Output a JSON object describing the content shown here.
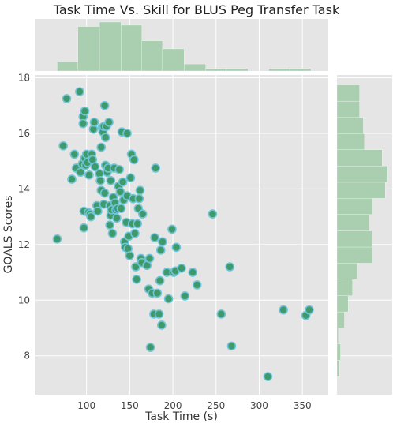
{
  "chart_data": {
    "type": "scatter",
    "title": "Task Time Vs. Skill for BLUS Peg Transfer Task",
    "xlabel": "Task Time (s)",
    "ylabel": "GOALS Scores",
    "xlim": [
      40,
      380
    ],
    "ylim": [
      6.6,
      18.1
    ],
    "x_ticks": [
      100,
      150,
      200,
      250,
      300,
      350
    ],
    "y_ticks": [
      8,
      10,
      12,
      14,
      16,
      18
    ],
    "grid": true,
    "points": [
      {
        "x": 66,
        "y": 12.2
      },
      {
        "x": 73,
        "y": 15.55
      },
      {
        "x": 77,
        "y": 17.25
      },
      {
        "x": 83,
        "y": 14.35
      },
      {
        "x": 86,
        "y": 15.25
      },
      {
        "x": 88,
        "y": 14.75
      },
      {
        "x": 92,
        "y": 17.5
      },
      {
        "x": 93,
        "y": 14.6
      },
      {
        "x": 95,
        "y": 14.9
      },
      {
        "x": 96,
        "y": 16.6
      },
      {
        "x": 96,
        "y": 16.35
      },
      {
        "x": 97,
        "y": 13.2
      },
      {
        "x": 97,
        "y": 12.6
      },
      {
        "x": 98,
        "y": 16.8
      },
      {
        "x": 98,
        "y": 15.1
      },
      {
        "x": 99,
        "y": 14.85
      },
      {
        "x": 100,
        "y": 15.25
      },
      {
        "x": 101,
        "y": 14.95
      },
      {
        "x": 102,
        "y": 13.15
      },
      {
        "x": 103,
        "y": 14.5
      },
      {
        "x": 104,
        "y": 13.1
      },
      {
        "x": 105,
        "y": 13.0
      },
      {
        "x": 106,
        "y": 15.25
      },
      {
        "x": 107,
        "y": 15.05
      },
      {
        "x": 108,
        "y": 16.15
      },
      {
        "x": 109,
        "y": 16.4
      },
      {
        "x": 110,
        "y": 14.8
      },
      {
        "x": 112,
        "y": 13.4
      },
      {
        "x": 113,
        "y": 13.2
      },
      {
        "x": 115,
        "y": 14.55
      },
      {
        "x": 116,
        "y": 14.3
      },
      {
        "x": 117,
        "y": 13.95
      },
      {
        "x": 117,
        "y": 15.5
      },
      {
        "x": 118,
        "y": 16.2
      },
      {
        "x": 119,
        "y": 16.05
      },
      {
        "x": 120,
        "y": 16.25
      },
      {
        "x": 120,
        "y": 13.45
      },
      {
        "x": 121,
        "y": 17.0
      },
      {
        "x": 121,
        "y": 13.85
      },
      {
        "x": 122,
        "y": 14.85
      },
      {
        "x": 122,
        "y": 15.85
      },
      {
        "x": 123,
        "y": 16.25
      },
      {
        "x": 124,
        "y": 14.6
      },
      {
        "x": 125,
        "y": 14.75
      },
      {
        "x": 126,
        "y": 16.4
      },
      {
        "x": 127,
        "y": 13.4
      },
      {
        "x": 127,
        "y": 12.7
      },
      {
        "x": 128,
        "y": 14.3
      },
      {
        "x": 128,
        "y": 13.05
      },
      {
        "x": 129,
        "y": 13.25
      },
      {
        "x": 130,
        "y": 12.4
      },
      {
        "x": 131,
        "y": 13.7
      },
      {
        "x": 132,
        "y": 14.75
      },
      {
        "x": 133,
        "y": 13.5
      },
      {
        "x": 134,
        "y": 13.25
      },
      {
        "x": 135,
        "y": 12.95
      },
      {
        "x": 136,
        "y": 13.3
      },
      {
        "x": 137,
        "y": 14.1
      },
      {
        "x": 138,
        "y": 14.7
      },
      {
        "x": 139,
        "y": 13.9
      },
      {
        "x": 140,
        "y": 13.3
      },
      {
        "x": 141,
        "y": 16.05
      },
      {
        "x": 142,
        "y": 14.25
      },
      {
        "x": 143,
        "y": 13.6
      },
      {
        "x": 144,
        "y": 12.1
      },
      {
        "x": 145,
        "y": 11.9
      },
      {
        "x": 146,
        "y": 12.8
      },
      {
        "x": 147,
        "y": 13.75
      },
      {
        "x": 147,
        "y": 16.0
      },
      {
        "x": 148,
        "y": 11.85
      },
      {
        "x": 149,
        "y": 12.3
      },
      {
        "x": 150,
        "y": 11.6
      },
      {
        "x": 151,
        "y": 14.4
      },
      {
        "x": 152,
        "y": 15.25
      },
      {
        "x": 153,
        "y": 12.75
      },
      {
        "x": 154,
        "y": 13.65
      },
      {
        "x": 155,
        "y": 15.05
      },
      {
        "x": 156,
        "y": 12.4
      },
      {
        "x": 157,
        "y": 11.2
      },
      {
        "x": 158,
        "y": 10.75
      },
      {
        "x": 159,
        "y": 12.75
      },
      {
        "x": 160,
        "y": 13.3
      },
      {
        "x": 161,
        "y": 13.65
      },
      {
        "x": 162,
        "y": 13.95
      },
      {
        "x": 163,
        "y": 11.5
      },
      {
        "x": 164,
        "y": 11.35
      },
      {
        "x": 165,
        "y": 13.1
      },
      {
        "x": 170,
        "y": 11.25
      },
      {
        "x": 172,
        "y": 10.4
      },
      {
        "x": 173,
        "y": 11.5
      },
      {
        "x": 174,
        "y": 8.3
      },
      {
        "x": 176,
        "y": 10.25
      },
      {
        "x": 178,
        "y": 9.5
      },
      {
        "x": 179,
        "y": 12.25
      },
      {
        "x": 180,
        "y": 14.75
      },
      {
        "x": 182,
        "y": 10.25
      },
      {
        "x": 184,
        "y": 9.5
      },
      {
        "x": 185,
        "y": 10.7
      },
      {
        "x": 186,
        "y": 11.8
      },
      {
        "x": 187,
        "y": 9.1
      },
      {
        "x": 188,
        "y": 12.1
      },
      {
        "x": 193,
        "y": 11.0
      },
      {
        "x": 195,
        "y": 10.05
      },
      {
        "x": 199,
        "y": 12.55
      },
      {
        "x": 201,
        "y": 11.0
      },
      {
        "x": 203,
        "y": 11.05
      },
      {
        "x": 204,
        "y": 11.9
      },
      {
        "x": 210,
        "y": 11.15
      },
      {
        "x": 214,
        "y": 10.15
      },
      {
        "x": 223,
        "y": 11.0
      },
      {
        "x": 228,
        "y": 10.55
      },
      {
        "x": 246,
        "y": 13.1
      },
      {
        "x": 256,
        "y": 9.5
      },
      {
        "x": 266,
        "y": 11.2
      },
      {
        "x": 268,
        "y": 8.35
      },
      {
        "x": 310,
        "y": 7.25
      },
      {
        "x": 328,
        "y": 9.65
      },
      {
        "x": 354,
        "y": 9.45
      },
      {
        "x": 358,
        "y": 9.65
      }
    ],
    "x_marginal_hist": {
      "bins": [
        [
          66,
          90
        ],
        [
          90,
          115
        ],
        [
          115,
          140
        ],
        [
          140,
          164
        ],
        [
          164,
          188
        ],
        [
          188,
          213
        ],
        [
          213,
          238
        ],
        [
          238,
          262
        ],
        [
          262,
          287
        ],
        [
          287,
          311
        ],
        [
          311,
          336
        ],
        [
          336,
          360
        ]
      ],
      "density": [
        0.0035,
        0.0171,
        0.0188,
        0.0176,
        0.0116,
        0.0085,
        0.0027,
        0.001,
        0.001,
        0.0,
        0.001,
        0.001
      ]
    },
    "y_marginal_hist": {
      "bins": [
        [
          7.25,
          7.83
        ],
        [
          7.83,
          8.42
        ],
        [
          8.42,
          9.0
        ],
        [
          9.0,
          9.58
        ],
        [
          9.58,
          10.16
        ],
        [
          10.16,
          10.75
        ],
        [
          10.75,
          11.33
        ],
        [
          11.33,
          11.91
        ],
        [
          11.91,
          12.49
        ],
        [
          12.49,
          13.08
        ],
        [
          13.08,
          13.66
        ],
        [
          13.66,
          14.24
        ],
        [
          14.24,
          14.83
        ],
        [
          14.83,
          15.41
        ],
        [
          15.41,
          15.99
        ],
        [
          15.99,
          16.57
        ],
        [
          16.57,
          17.16
        ],
        [
          17.16,
          17.74
        ]
      ],
      "density": [
        0.018,
        0.025,
        0.01,
        0.053,
        0.079,
        0.11,
        0.144,
        0.254,
        0.249,
        0.227,
        0.254,
        0.342,
        0.358,
        0.32,
        0.195,
        0.187,
        0.16,
        0.16
      ]
    },
    "colors": {
      "point_fill": "#3e9a6a",
      "point_edge": "#6fc4d8",
      "hist_fill": "#a9cfb0",
      "plot_bg": "#e5e5e5",
      "grid": "#ffffff"
    }
  }
}
